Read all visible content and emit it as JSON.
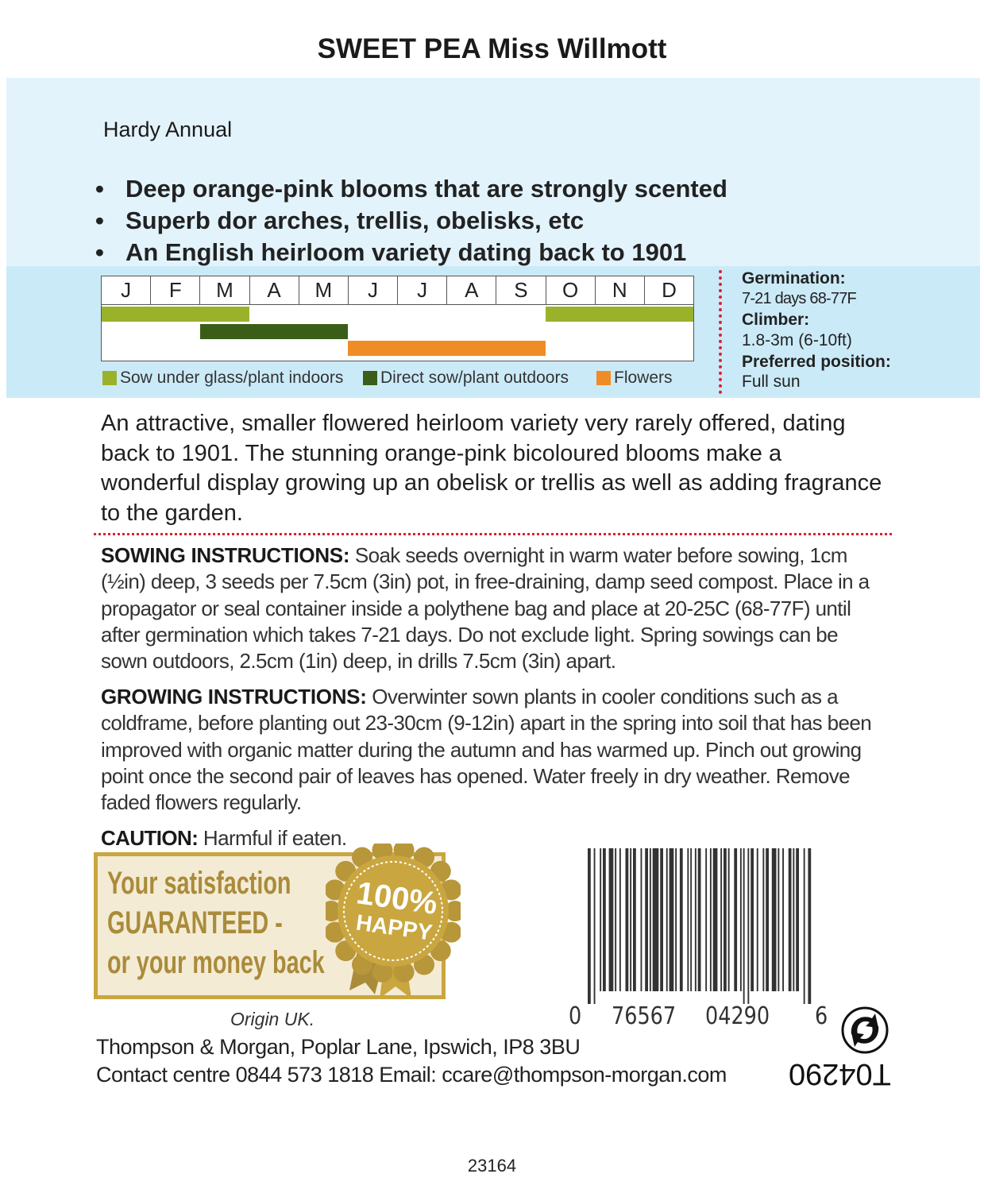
{
  "title": "SWEET PEA Miss Willmott",
  "subtitle": "Hardy Annual",
  "bullets": [
    "Deep orange-pink blooms that are strongly scented",
    "Superb dor arches, trellis, obelisks, etc",
    "An English heirloom variety dating back to 1901"
  ],
  "calendar": {
    "months": [
      "J",
      "F",
      "M",
      "A",
      "M",
      "J",
      "J",
      "A",
      "S",
      "O",
      "N",
      "D"
    ],
    "rows": [
      {
        "key": "sow_indoors",
        "color": "#9ab22a",
        "spans": [
          [
            1,
            3
          ],
          [
            10,
            12
          ]
        ]
      },
      {
        "key": "sow_outdoors",
        "color": "#3a5e17",
        "spans": [
          [
            3,
            5
          ]
        ]
      },
      {
        "key": "flowers",
        "color": "#ef8c26",
        "spans": [
          [
            6,
            9
          ]
        ]
      }
    ],
    "legend": {
      "sow_indoors": "Sow under glass/plant indoors",
      "sow_outdoors": "Direct sow/plant outdoors",
      "flowers": "Flowers"
    }
  },
  "info": {
    "germination_label": "Germination:",
    "germination_value": "7-21 days 68-77F",
    "climber_label": "Climber:",
    "climber_value": "1.8-3m (6-10ft)",
    "position_label": "Preferred position:",
    "position_value": "Full sun"
  },
  "description": "An attractive, smaller flowered heirloom variety very rarely offered, dating back to 1901. The stunning orange-pink bicoloured blooms make a wonderful display growing up an obelisk or trellis as well as adding fragrance to the garden.",
  "sowing": {
    "label": "SOWING INSTRUCTIONS:",
    "text": " Soak seeds overnight in warm water before sowing, 1cm (½in) deep, 3 seeds per 7.5cm (3in) pot, in free-draining, damp seed compost. Place in a propagator or seal container inside a polythene bag and place at 20-25C (68-77F) until after germination which takes 7-21 days. Do not exclude light. Spring sowings can be sown outdoors, 2.5cm (1in) deep, in drills 7.5cm (3in) apart."
  },
  "growing": {
    "label": "GROWING INSTRUCTIONS:",
    "text": " Overwinter sown plants in cooler conditions such as a coldframe, before planting out 23-30cm (9-12in) apart in the spring into soil that has been improved with organic matter during the autumn and has warmed up. Pinch out growing point once the second pair of leaves has opened. Water freely in dry weather. Remove faded flowers regularly."
  },
  "caution": {
    "label": "CAUTION:",
    "text": " Harmful if eaten."
  },
  "guarantee": {
    "lines": [
      "Your satisfaction",
      "GUARANTEED -",
      "or your money back"
    ],
    "badge_top": "100%",
    "badge_bottom": "HAPPY",
    "gold": "#c9a63f"
  },
  "barcode": {
    "digits": [
      "0",
      "76567",
      "04290",
      "6"
    ]
  },
  "product_code": "T04290",
  "origin": "Origin UK.",
  "address": "Thompson & Morgan, Poplar Lane, Ipswich, IP8 3BU",
  "contact": "Contact centre 0844 573 1818 Email: ccare@thompson-morgan.com",
  "reference": "23164"
}
